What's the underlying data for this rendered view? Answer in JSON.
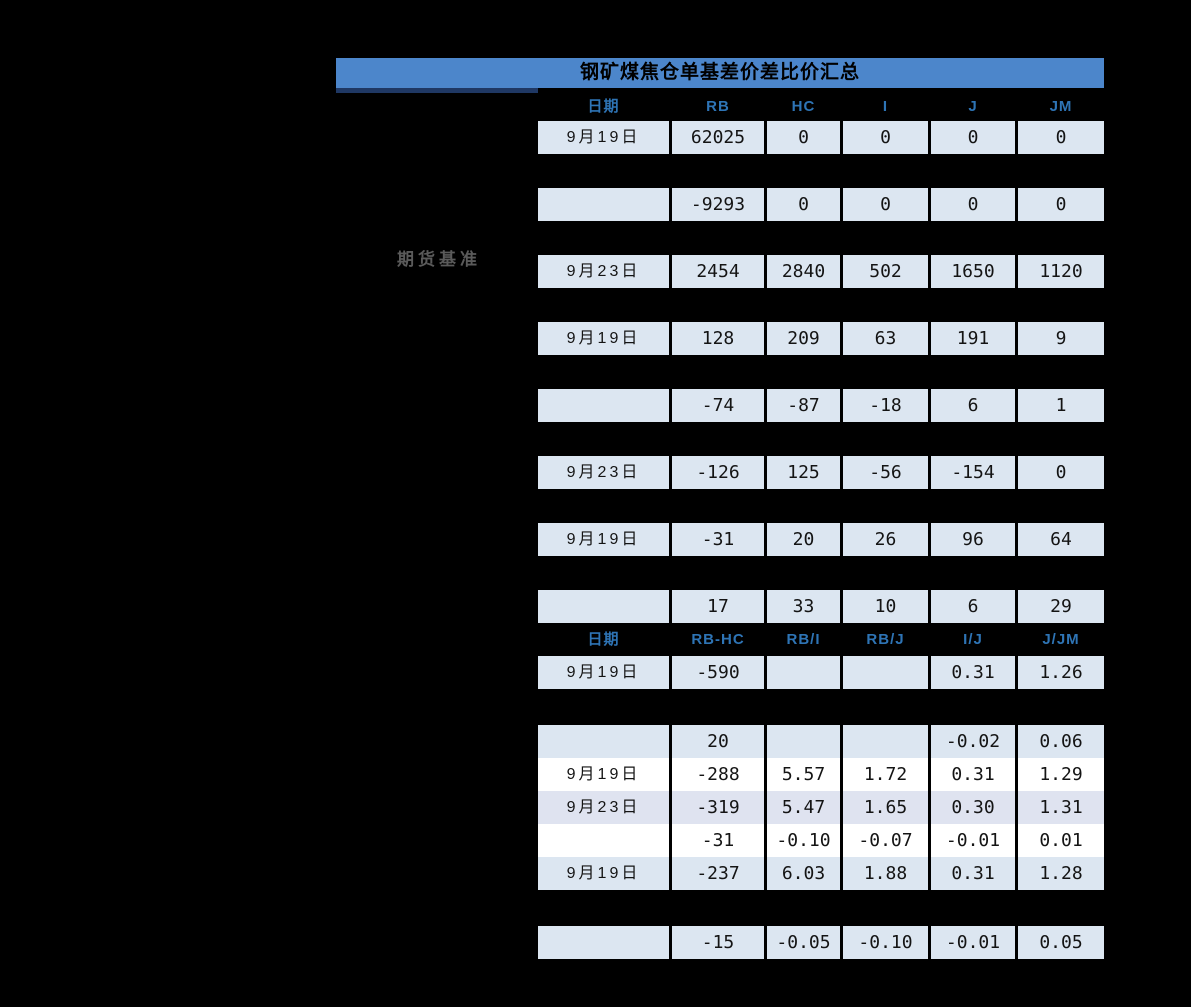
{
  "title": "钢矿煤焦仓单基差价差比价汇总",
  "side_label": "期货基准",
  "colors": {
    "background": "#000000",
    "title_bg": "#4c86cb",
    "title_underline_navy": "#1f3864",
    "header_text_blue": "#2e74b5",
    "cell_blue": "#dce6f1",
    "cell_white": "#ffffff",
    "cell_lavender": "#dfe3f0",
    "cell_text": "#141414",
    "side_label_gray": "#5a5a5a"
  },
  "table": {
    "header1": {
      "cells": [
        "日期",
        "RB",
        "HC",
        "I",
        "J",
        "JM"
      ]
    },
    "header2": {
      "cells": [
        "日期",
        "RB-HC",
        "RB/I",
        "RB/J",
        "I/J",
        "J/JM"
      ]
    },
    "rows_a": [
      {
        "date": "9月19日",
        "values": [
          "62025",
          "0",
          "0",
          "0",
          "0"
        ],
        "band": "blue",
        "gap_before": false
      },
      {
        "date": "",
        "values": [
          "-9293",
          "0",
          "0",
          "0",
          "0"
        ],
        "band": "blue",
        "gap_before": true
      },
      {
        "date": "9月23日",
        "values": [
          "2454",
          "2840",
          "502",
          "1650",
          "1120"
        ],
        "band": "blue",
        "gap_before": true
      },
      {
        "date": "9月19日",
        "values": [
          "128",
          "209",
          "63",
          "191",
          "9"
        ],
        "band": "blue",
        "gap_before": true
      },
      {
        "date": "",
        "values": [
          "-74",
          "-87",
          "-18",
          "6",
          "1"
        ],
        "band": "blue",
        "gap_before": true
      },
      {
        "date": "9月23日",
        "values": [
          "-126",
          "125",
          "-56",
          "-154",
          "0"
        ],
        "band": "blue",
        "gap_before": true
      },
      {
        "date": "9月19日",
        "values": [
          "-31",
          "20",
          "26",
          "96",
          "64"
        ],
        "band": "blue",
        "gap_before": true
      },
      {
        "date": "",
        "values": [
          "17",
          "33",
          "10",
          "6",
          "29"
        ],
        "band": "blue",
        "gap_before": true
      }
    ],
    "rows_b": [
      {
        "date": "9月19日",
        "values": [
          "-590",
          "",
          "",
          "0.31",
          "1.26"
        ],
        "band": "blue",
        "gap_before": false
      },
      {
        "date": "",
        "values": [
          "20",
          "",
          "",
          "-0.02",
          "0.06"
        ],
        "band": "blue",
        "gap_before": true,
        "big_gap": true
      },
      {
        "date": "9月19日",
        "values": [
          "-288",
          "5.57",
          "1.72",
          "0.31",
          "1.29"
        ],
        "band": "white",
        "gap_before": false
      },
      {
        "date": "9月23日",
        "values": [
          "-319",
          "5.47",
          "1.65",
          "0.30",
          "1.31"
        ],
        "band": "lavender",
        "gap_before": false
      },
      {
        "date": "",
        "values": [
          "-31",
          "-0.10",
          "-0.07",
          "-0.01",
          "0.01"
        ],
        "band": "white",
        "gap_before": false
      },
      {
        "date": "9月19日",
        "values": [
          "-237",
          "6.03",
          "1.88",
          "0.31",
          "1.28"
        ],
        "band": "blue",
        "gap_before": false
      },
      {
        "date": "",
        "values": [
          "-15",
          "-0.05",
          "-0.10",
          "-0.01",
          "0.05"
        ],
        "band": "blue",
        "gap_before": true,
        "big_gap": true
      }
    ]
  }
}
